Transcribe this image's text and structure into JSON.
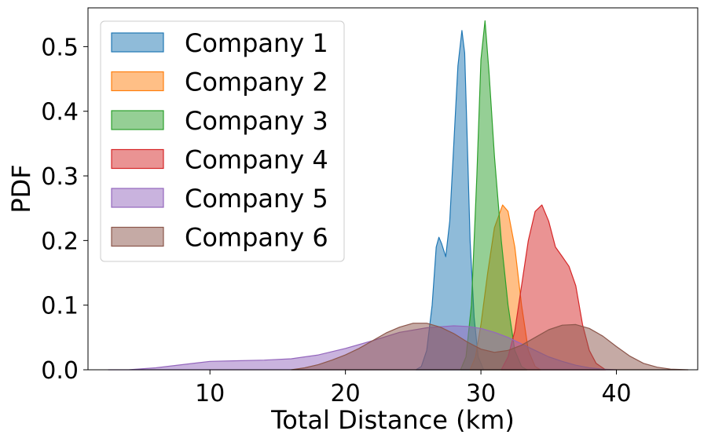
{
  "chart_data": {
    "type": "area",
    "subtype": "kde",
    "title": "",
    "xlabel": "Total Distance (km)",
    "ylabel": "PDF",
    "xlim": [
      1,
      46
    ],
    "ylim": [
      0,
      0.56
    ],
    "xticks": [
      10,
      20,
      30,
      40
    ],
    "yticks": [
      0.0,
      0.1,
      0.2,
      0.3,
      0.4,
      0.5
    ],
    "ytick_labels": [
      "0.0",
      "0.1",
      "0.2",
      "0.3",
      "0.4",
      "0.5"
    ],
    "grid": false,
    "legend_position": "upper-left",
    "fill_opacity": 0.5,
    "series": [
      {
        "name": "Company 1",
        "color": "#1f77b4",
        "points": [
          [
            25.2,
            0
          ],
          [
            25.6,
            0.005
          ],
          [
            26.0,
            0.03
          ],
          [
            26.4,
            0.1
          ],
          [
            26.7,
            0.19
          ],
          [
            26.9,
            0.205
          ],
          [
            27.1,
            0.195
          ],
          [
            27.4,
            0.175
          ],
          [
            27.7,
            0.23
          ],
          [
            28.0,
            0.35
          ],
          [
            28.3,
            0.47
          ],
          [
            28.6,
            0.525
          ],
          [
            28.8,
            0.49
          ],
          [
            29.0,
            0.35
          ],
          [
            29.2,
            0.2
          ],
          [
            29.5,
            0.08
          ],
          [
            29.8,
            0.02
          ],
          [
            30.2,
            0
          ]
        ]
      },
      {
        "name": "Company 2",
        "color": "#ff7f0e",
        "points": [
          [
            29.2,
            0
          ],
          [
            29.6,
            0.02
          ],
          [
            30.0,
            0.07
          ],
          [
            30.5,
            0.15
          ],
          [
            31.0,
            0.22
          ],
          [
            31.6,
            0.255
          ],
          [
            32.0,
            0.245
          ],
          [
            32.5,
            0.19
          ],
          [
            33.0,
            0.1
          ],
          [
            33.5,
            0.03
          ],
          [
            34.0,
            0.005
          ],
          [
            34.4,
            0
          ]
        ]
      },
      {
        "name": "Company 3",
        "color": "#2ca02c",
        "points": [
          [
            28.5,
            0
          ],
          [
            28.9,
            0.02
          ],
          [
            29.3,
            0.1
          ],
          [
            29.7,
            0.3
          ],
          [
            30.0,
            0.48
          ],
          [
            30.3,
            0.54
          ],
          [
            30.6,
            0.46
          ],
          [
            31.0,
            0.33
          ],
          [
            31.5,
            0.2
          ],
          [
            32.0,
            0.1
          ],
          [
            32.5,
            0.03
          ],
          [
            33.0,
            0.005
          ],
          [
            33.4,
            0
          ]
        ]
      },
      {
        "name": "Company 4",
        "color": "#d62728",
        "points": [
          [
            31.5,
            0
          ],
          [
            32.0,
            0.02
          ],
          [
            32.5,
            0.06
          ],
          [
            33.0,
            0.13
          ],
          [
            33.5,
            0.2
          ],
          [
            34.0,
            0.245
          ],
          [
            34.5,
            0.255
          ],
          [
            35.0,
            0.23
          ],
          [
            35.5,
            0.19
          ],
          [
            36.0,
            0.175
          ],
          [
            36.5,
            0.16
          ],
          [
            37.0,
            0.13
          ],
          [
            37.5,
            0.07
          ],
          [
            38.0,
            0.03
          ],
          [
            38.5,
            0.01
          ],
          [
            39.2,
            0
          ]
        ]
      },
      {
        "name": "Company 5",
        "color": "#9467bd",
        "points": [
          [
            2.5,
            0
          ],
          [
            4,
            0.0
          ],
          [
            6,
            0.003
          ],
          [
            8,
            0.008
          ],
          [
            10,
            0.013
          ],
          [
            12,
            0.014
          ],
          [
            14,
            0.015
          ],
          [
            16,
            0.017
          ],
          [
            18,
            0.023
          ],
          [
            20,
            0.033
          ],
          [
            22,
            0.045
          ],
          [
            24,
            0.058
          ],
          [
            26,
            0.065
          ],
          [
            28,
            0.068
          ],
          [
            29,
            0.067
          ],
          [
            30,
            0.064
          ],
          [
            31,
            0.058
          ],
          [
            32,
            0.05
          ],
          [
            33,
            0.04
          ],
          [
            34,
            0.03
          ],
          [
            35,
            0.02
          ],
          [
            36,
            0.013
          ],
          [
            37,
            0.007
          ],
          [
            38,
            0.003
          ],
          [
            39,
            0.001
          ],
          [
            40,
            0
          ]
        ]
      },
      {
        "name": "Company 6",
        "color": "#8c564b",
        "points": [
          [
            16,
            0
          ],
          [
            17,
            0.003
          ],
          [
            18,
            0.008
          ],
          [
            19,
            0.015
          ],
          [
            20,
            0.023
          ],
          [
            21,
            0.033
          ],
          [
            22,
            0.045
          ],
          [
            23,
            0.057
          ],
          [
            24,
            0.066
          ],
          [
            25,
            0.072
          ],
          [
            26,
            0.072
          ],
          [
            27,
            0.066
          ],
          [
            28,
            0.056
          ],
          [
            29,
            0.043
          ],
          [
            30,
            0.032
          ],
          [
            31,
            0.027
          ],
          [
            32,
            0.03
          ],
          [
            33,
            0.038
          ],
          [
            34,
            0.05
          ],
          [
            35,
            0.062
          ],
          [
            36,
            0.069
          ],
          [
            37,
            0.07
          ],
          [
            38,
            0.064
          ],
          [
            39,
            0.052
          ],
          [
            40,
            0.036
          ],
          [
            41,
            0.021
          ],
          [
            42,
            0.01
          ],
          [
            43,
            0.004
          ],
          [
            44,
            0.001
          ],
          [
            45.3,
            0
          ]
        ]
      }
    ]
  }
}
